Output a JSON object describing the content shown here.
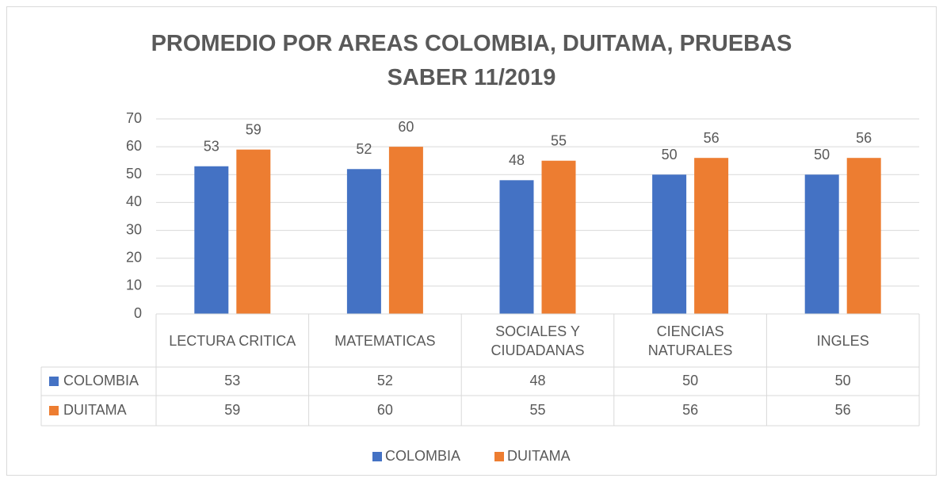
{
  "chart_data": {
    "type": "bar",
    "title": "PROMEDIO POR AREAS COLOMBIA, DUITAMA, PRUEBAS SABER 11/2019",
    "categories": [
      "LECTURA CRITICA",
      "MATEMATICAS",
      "SOCIALES Y CIUDADANAS",
      "CIENCIAS NATURALES",
      "INGLES"
    ],
    "series": [
      {
        "name": "COLOMBIA",
        "color": "#4472c4",
        "values": [
          53,
          52,
          48,
          50,
          50
        ]
      },
      {
        "name": "DUITAMA",
        "color": "#ed7d31",
        "values": [
          59,
          60,
          55,
          56,
          56
        ]
      }
    ],
    "ylim": [
      0,
      70
    ],
    "yticks": [
      0,
      10,
      20,
      30,
      40,
      50,
      60,
      70
    ],
    "grid": true,
    "legend": "bottom",
    "data_table": true
  }
}
